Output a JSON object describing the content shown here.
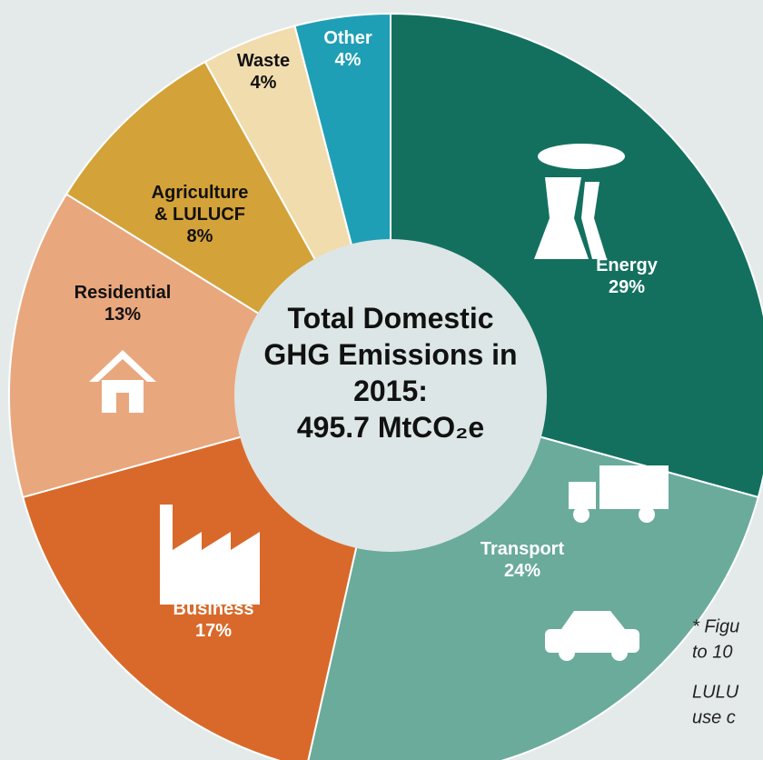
{
  "chart_data": {
    "type": "donut",
    "title": "Total Domestic GHG Emissions in 2015:",
    "total": "495.7 MtCO₂e",
    "categories": [
      "Energy",
      "Transport",
      "Business",
      "Residential",
      "Agriculture & LULUCF",
      "Waste",
      "Other"
    ],
    "values": [
      29,
      24,
      17,
      13,
      8,
      4,
      4
    ],
    "value_labels": [
      "29%",
      "24%",
      "17%",
      "13%",
      "8%",
      "4%",
      "4%"
    ],
    "colors": [
      "#13705f",
      "#6aab9c",
      "#d9692a",
      "#e9a77d",
      "#d3a238",
      "#f1dcae",
      "#1f9fb5"
    ],
    "notes": [
      "* Figu",
      "to 10",
      "LULU",
      "use c"
    ]
  }
}
